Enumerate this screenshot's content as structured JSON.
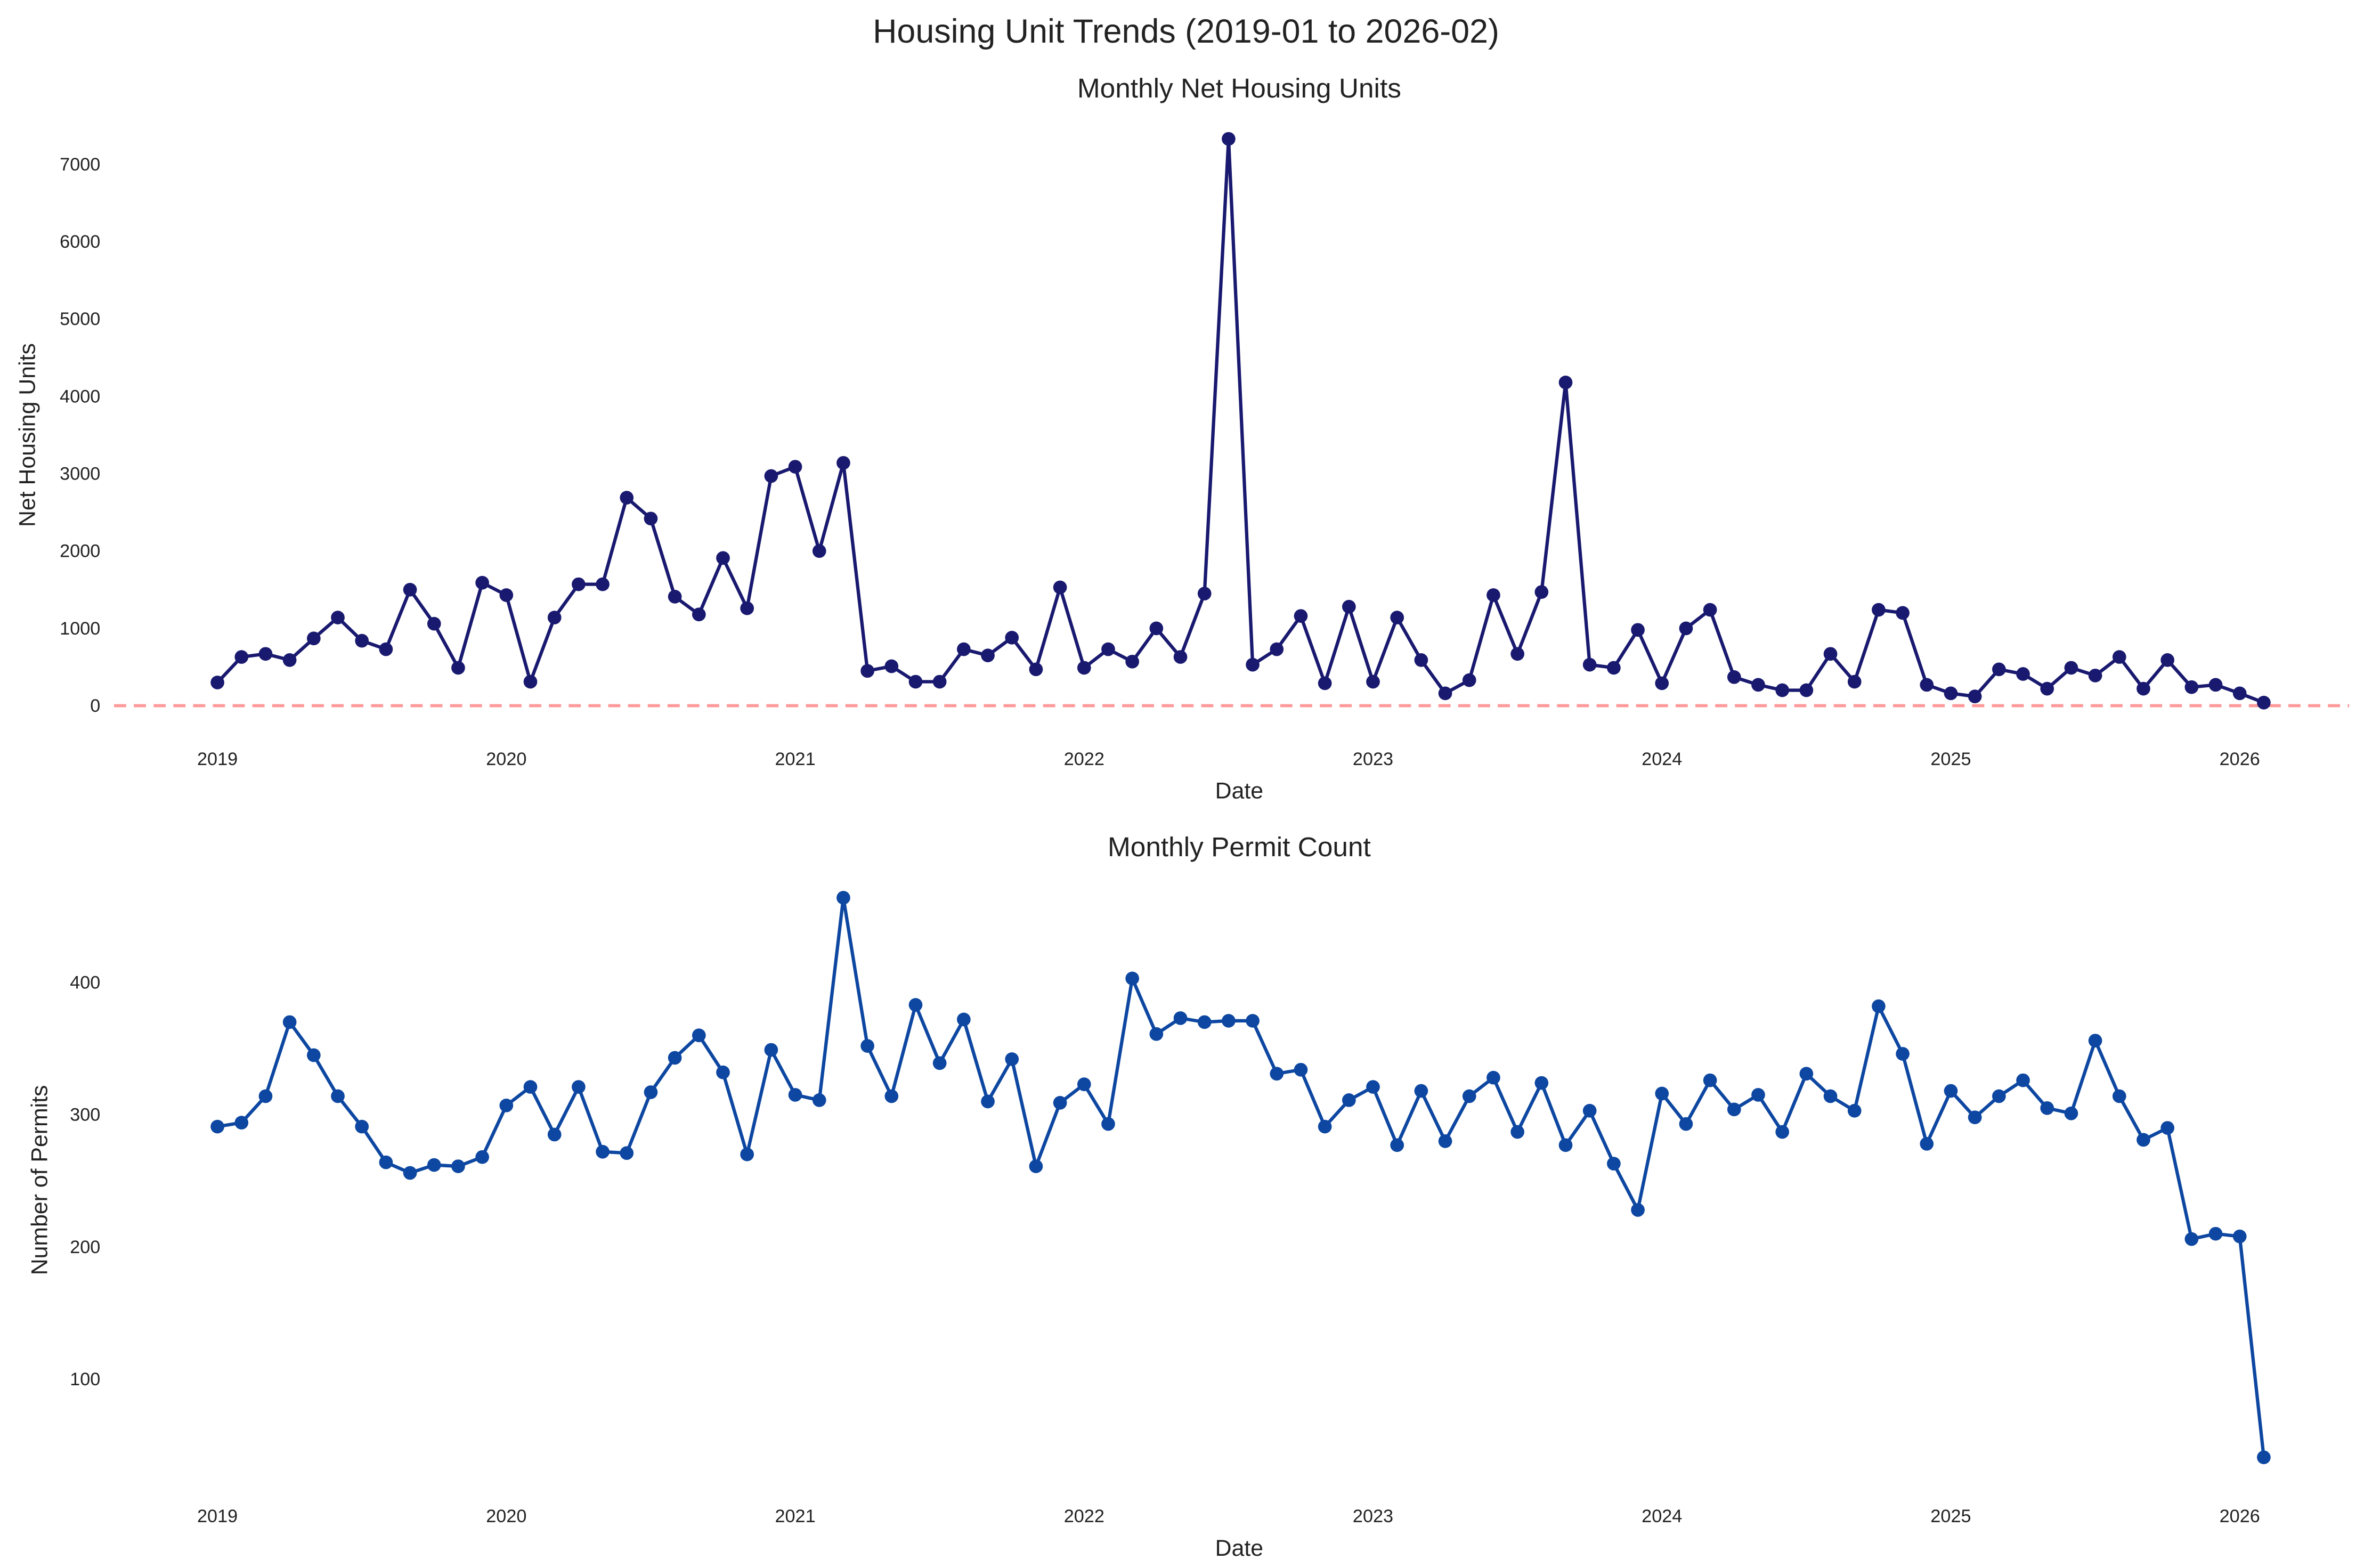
{
  "title": "Housing Unit Trends (2019-01 to 2026-02)",
  "colors": {
    "net_line": "#191970",
    "permit_line": "#0d47a1",
    "zero_line": "#ff9999"
  },
  "x_dates": [
    "2019-01",
    "2019-02",
    "2019-03",
    "2019-04",
    "2019-05",
    "2019-06",
    "2019-07",
    "2019-08",
    "2019-09",
    "2019-10",
    "2019-11",
    "2019-12",
    "2020-01",
    "2020-02",
    "2020-03",
    "2020-04",
    "2020-05",
    "2020-06",
    "2020-07",
    "2020-08",
    "2020-09",
    "2020-10",
    "2020-11",
    "2020-12",
    "2021-01",
    "2021-02",
    "2021-03",
    "2021-04",
    "2021-05",
    "2021-06",
    "2021-07",
    "2021-08",
    "2021-09",
    "2021-10",
    "2021-11",
    "2021-12",
    "2022-01",
    "2022-02",
    "2022-03",
    "2022-04",
    "2022-05",
    "2022-06",
    "2022-07",
    "2022-08",
    "2022-09",
    "2022-10",
    "2022-11",
    "2022-12",
    "2023-01",
    "2023-02",
    "2023-03",
    "2023-04",
    "2023-05",
    "2023-06",
    "2023-07",
    "2023-08",
    "2023-09",
    "2023-10",
    "2023-11",
    "2023-12",
    "2024-01",
    "2024-02",
    "2024-03",
    "2024-04",
    "2024-05",
    "2024-06",
    "2024-07",
    "2024-08",
    "2024-09",
    "2024-10",
    "2024-11",
    "2024-12",
    "2025-01",
    "2025-02",
    "2025-03",
    "2025-04",
    "2025-05",
    "2025-06",
    "2025-07",
    "2025-08",
    "2025-09",
    "2025-10",
    "2025-11",
    "2025-12",
    "2026-01",
    "2026-02"
  ],
  "chart_data": [
    {
      "type": "line",
      "title": "Monthly Net Housing Units",
      "xlabel": "Date",
      "ylabel": "Net Housing Units",
      "x_tick_labels": [
        "2019",
        "2020",
        "2021",
        "2022",
        "2023",
        "2024",
        "2025",
        "2026"
      ],
      "y_tick_labels": [
        "0",
        "1000",
        "2000",
        "3000",
        "4000",
        "5000",
        "6000",
        "7000"
      ],
      "y_ticks": [
        0,
        1000,
        2000,
        3000,
        4000,
        5000,
        6000,
        7000
      ],
      "ylim": [
        -300,
        7700
      ],
      "grid": false,
      "reference_line": {
        "y": 0,
        "style": "dashed"
      },
      "markers": true,
      "values": [
        300,
        630,
        670,
        590,
        870,
        1140,
        840,
        730,
        1500,
        1060,
        490,
        1590,
        1430,
        310,
        1140,
        1570,
        1570,
        2690,
        2420,
        1410,
        1180,
        1910,
        1260,
        2970,
        3090,
        2000,
        3140,
        450,
        510,
        310,
        310,
        730,
        650,
        880,
        470,
        1530,
        490,
        730,
        570,
        1000,
        630,
        1450,
        7330,
        530,
        730,
        1160,
        290,
        1280,
        310,
        1140,
        590,
        160,
        330,
        1430,
        670,
        1470,
        4180,
        530,
        490,
        980,
        290,
        1000,
        1240,
        370,
        270,
        200,
        200,
        670,
        310,
        1240,
        1200,
        270,
        160,
        120,
        470,
        410,
        220,
        490,
        390,
        630,
        220,
        590,
        240,
        270,
        160,
        40
      ]
    },
    {
      "type": "line",
      "title": "Monthly Permit Count",
      "xlabel": "Date",
      "ylabel": "Number of Permits",
      "x_tick_labels": [
        "2019",
        "2020",
        "2021",
        "2022",
        "2023",
        "2024",
        "2025",
        "2026"
      ],
      "y_tick_labels": [
        "100",
        "200",
        "300",
        "400"
      ],
      "y_ticks": [
        100,
        200,
        300,
        400
      ],
      "ylim": [
        20,
        475
      ],
      "grid": false,
      "markers": true,
      "values": [
        291,
        294,
        314,
        370,
        345,
        314,
        291,
        264,
        256,
        262,
        261,
        268,
        307,
        321,
        285,
        321,
        272,
        271,
        317,
        343,
        360,
        332,
        270,
        349,
        315,
        311,
        464,
        352,
        314,
        383,
        339,
        372,
        310,
        342,
        261,
        309,
        323,
        293,
        403,
        361,
        373,
        370,
        371,
        371,
        331,
        334,
        291,
        311,
        321,
        277,
        318,
        280,
        314,
        328,
        287,
        324,
        277,
        303,
        263,
        228,
        316,
        293,
        326,
        304,
        315,
        287,
        331,
        314,
        303,
        382,
        346,
        278,
        318,
        298,
        314,
        326,
        305,
        301,
        356,
        314,
        281,
        290,
        206,
        210,
        208,
        41
      ]
    }
  ]
}
